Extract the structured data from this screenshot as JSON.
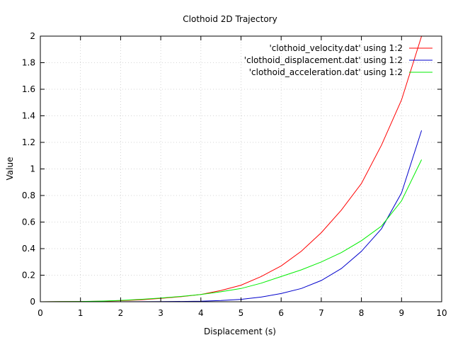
{
  "chart_data": {
    "type": "line",
    "title": "Clothoid 2D Trajectory",
    "xlabel": "Displacement (s)",
    "ylabel": "Value",
    "xlim": [
      0,
      10
    ],
    "ylim": [
      0,
      2
    ],
    "xticks": [
      "0",
      "1",
      "2",
      "3",
      "4",
      "5",
      "6",
      "7",
      "8",
      "9",
      "10"
    ],
    "yticks": [
      "0",
      "0.2",
      "0.4",
      "0.6",
      "0.8",
      "1",
      "1.2",
      "1.4",
      "1.6",
      "1.8",
      "2"
    ],
    "grid": true,
    "legend_position": "top-right",
    "series": [
      {
        "name": "'clothoid_velocity.dat' using 1:2",
        "color": "#ff0000",
        "x": [
          0,
          0.5,
          1,
          1.5,
          2,
          2.5,
          3,
          3.5,
          4,
          4.5,
          5,
          5.5,
          6,
          6.5,
          7,
          7.5,
          8,
          8.5,
          9,
          9.5
        ],
        "y": [
          0,
          0.001,
          0.002,
          0.004,
          0.008,
          0.015,
          0.025,
          0.038,
          0.055,
          0.085,
          0.125,
          0.19,
          0.27,
          0.38,
          0.52,
          0.69,
          0.89,
          1.18,
          1.52,
          2.0
        ]
      },
      {
        "name": "'clothoid_displacement.dat' using 1:2",
        "color": "#0000cc",
        "x": [
          0,
          1,
          2,
          3,
          4,
          4.5,
          5,
          5.5,
          6,
          6.5,
          7,
          7.5,
          8,
          8.5,
          9,
          9.5
        ],
        "y": [
          0,
          0,
          0,
          0.001,
          0.004,
          0.009,
          0.018,
          0.035,
          0.062,
          0.1,
          0.16,
          0.25,
          0.38,
          0.55,
          0.82,
          1.29
        ]
      },
      {
        "name": "'clothoid_acceleration.dat' using 1:2",
        "color": "#00ee00",
        "x": [
          0,
          0.5,
          1,
          1.5,
          2,
          2.5,
          3,
          3.5,
          4,
          4.5,
          5,
          5.5,
          6,
          6.5,
          7,
          7.5,
          8,
          8.5,
          9,
          9.5
        ],
        "y": [
          0,
          0.001,
          0.002,
          0.005,
          0.01,
          0.018,
          0.028,
          0.04,
          0.055,
          0.075,
          0.1,
          0.14,
          0.19,
          0.24,
          0.3,
          0.37,
          0.46,
          0.57,
          0.76,
          1.07
        ]
      }
    ]
  }
}
